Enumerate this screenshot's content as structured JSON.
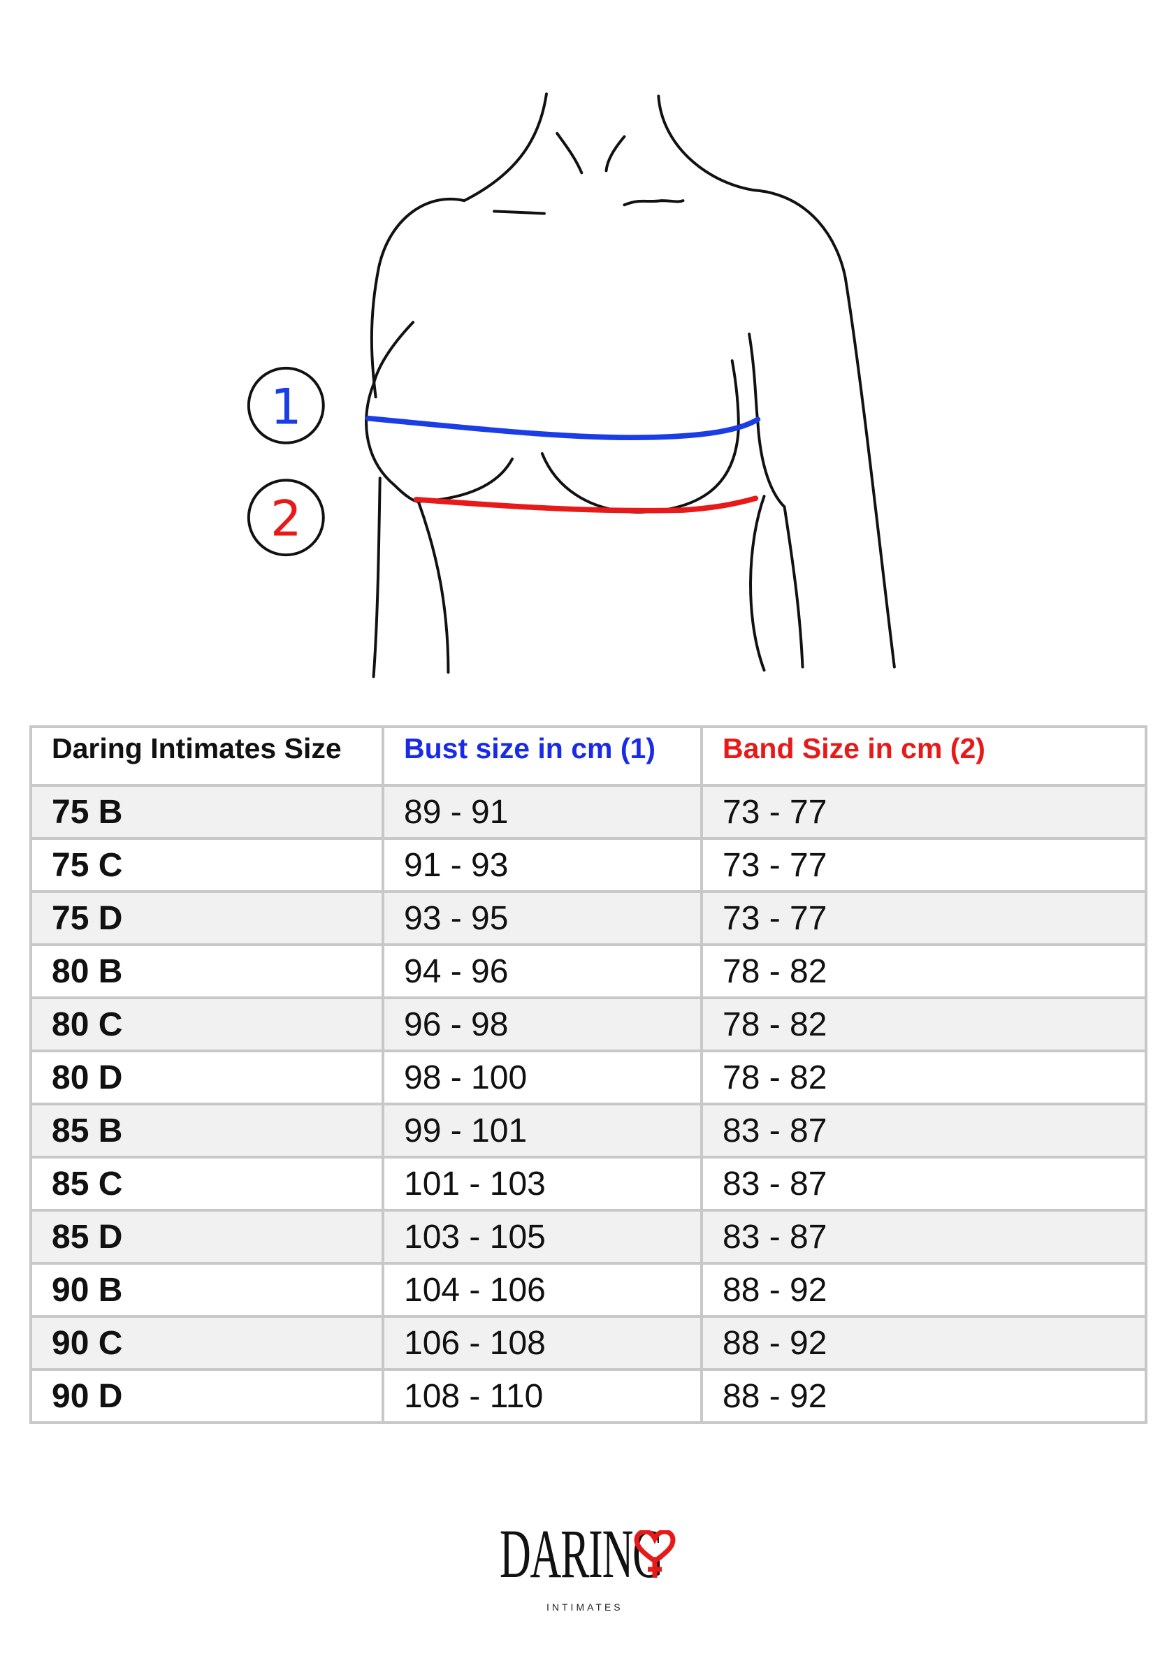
{
  "illustration": {
    "markers": [
      {
        "label": "1",
        "color": "#1a3de6"
      },
      {
        "label": "2",
        "color": "#e81919"
      }
    ]
  },
  "table": {
    "headers": [
      {
        "label": "Daring Intimates Size",
        "color": "#111111"
      },
      {
        "label": "Bust size in cm (1)",
        "color": "#1a2be8"
      },
      {
        "label": "Band Size in cm (2)",
        "color": "#e81919"
      }
    ],
    "rows": [
      [
        "75 B",
        "89 - 91",
        "73 - 77"
      ],
      [
        "75 C",
        "91 - 93",
        "73 - 77"
      ],
      [
        "75 D",
        "93 - 95",
        "73 - 77"
      ],
      [
        "80 B",
        "94 - 96",
        "78 - 82"
      ],
      [
        "80 C",
        "96 - 98",
        "78 - 82"
      ],
      [
        "80 D",
        "98 - 100",
        "78 - 82"
      ],
      [
        "85 B",
        "99 - 101",
        "83 - 87"
      ],
      [
        "85 C",
        "101 - 103",
        "83 - 87"
      ],
      [
        "85 D",
        "103 - 105",
        "83 - 87"
      ],
      [
        "90 B",
        "104 - 106",
        "88 - 92"
      ],
      [
        "90 C",
        "106 - 108",
        "88 - 92"
      ],
      [
        "90 D",
        "108 - 110",
        "88 - 92"
      ]
    ]
  },
  "logo": {
    "word": "DARING",
    "sub": "INTIMATES",
    "heart_color": "#e81919"
  }
}
